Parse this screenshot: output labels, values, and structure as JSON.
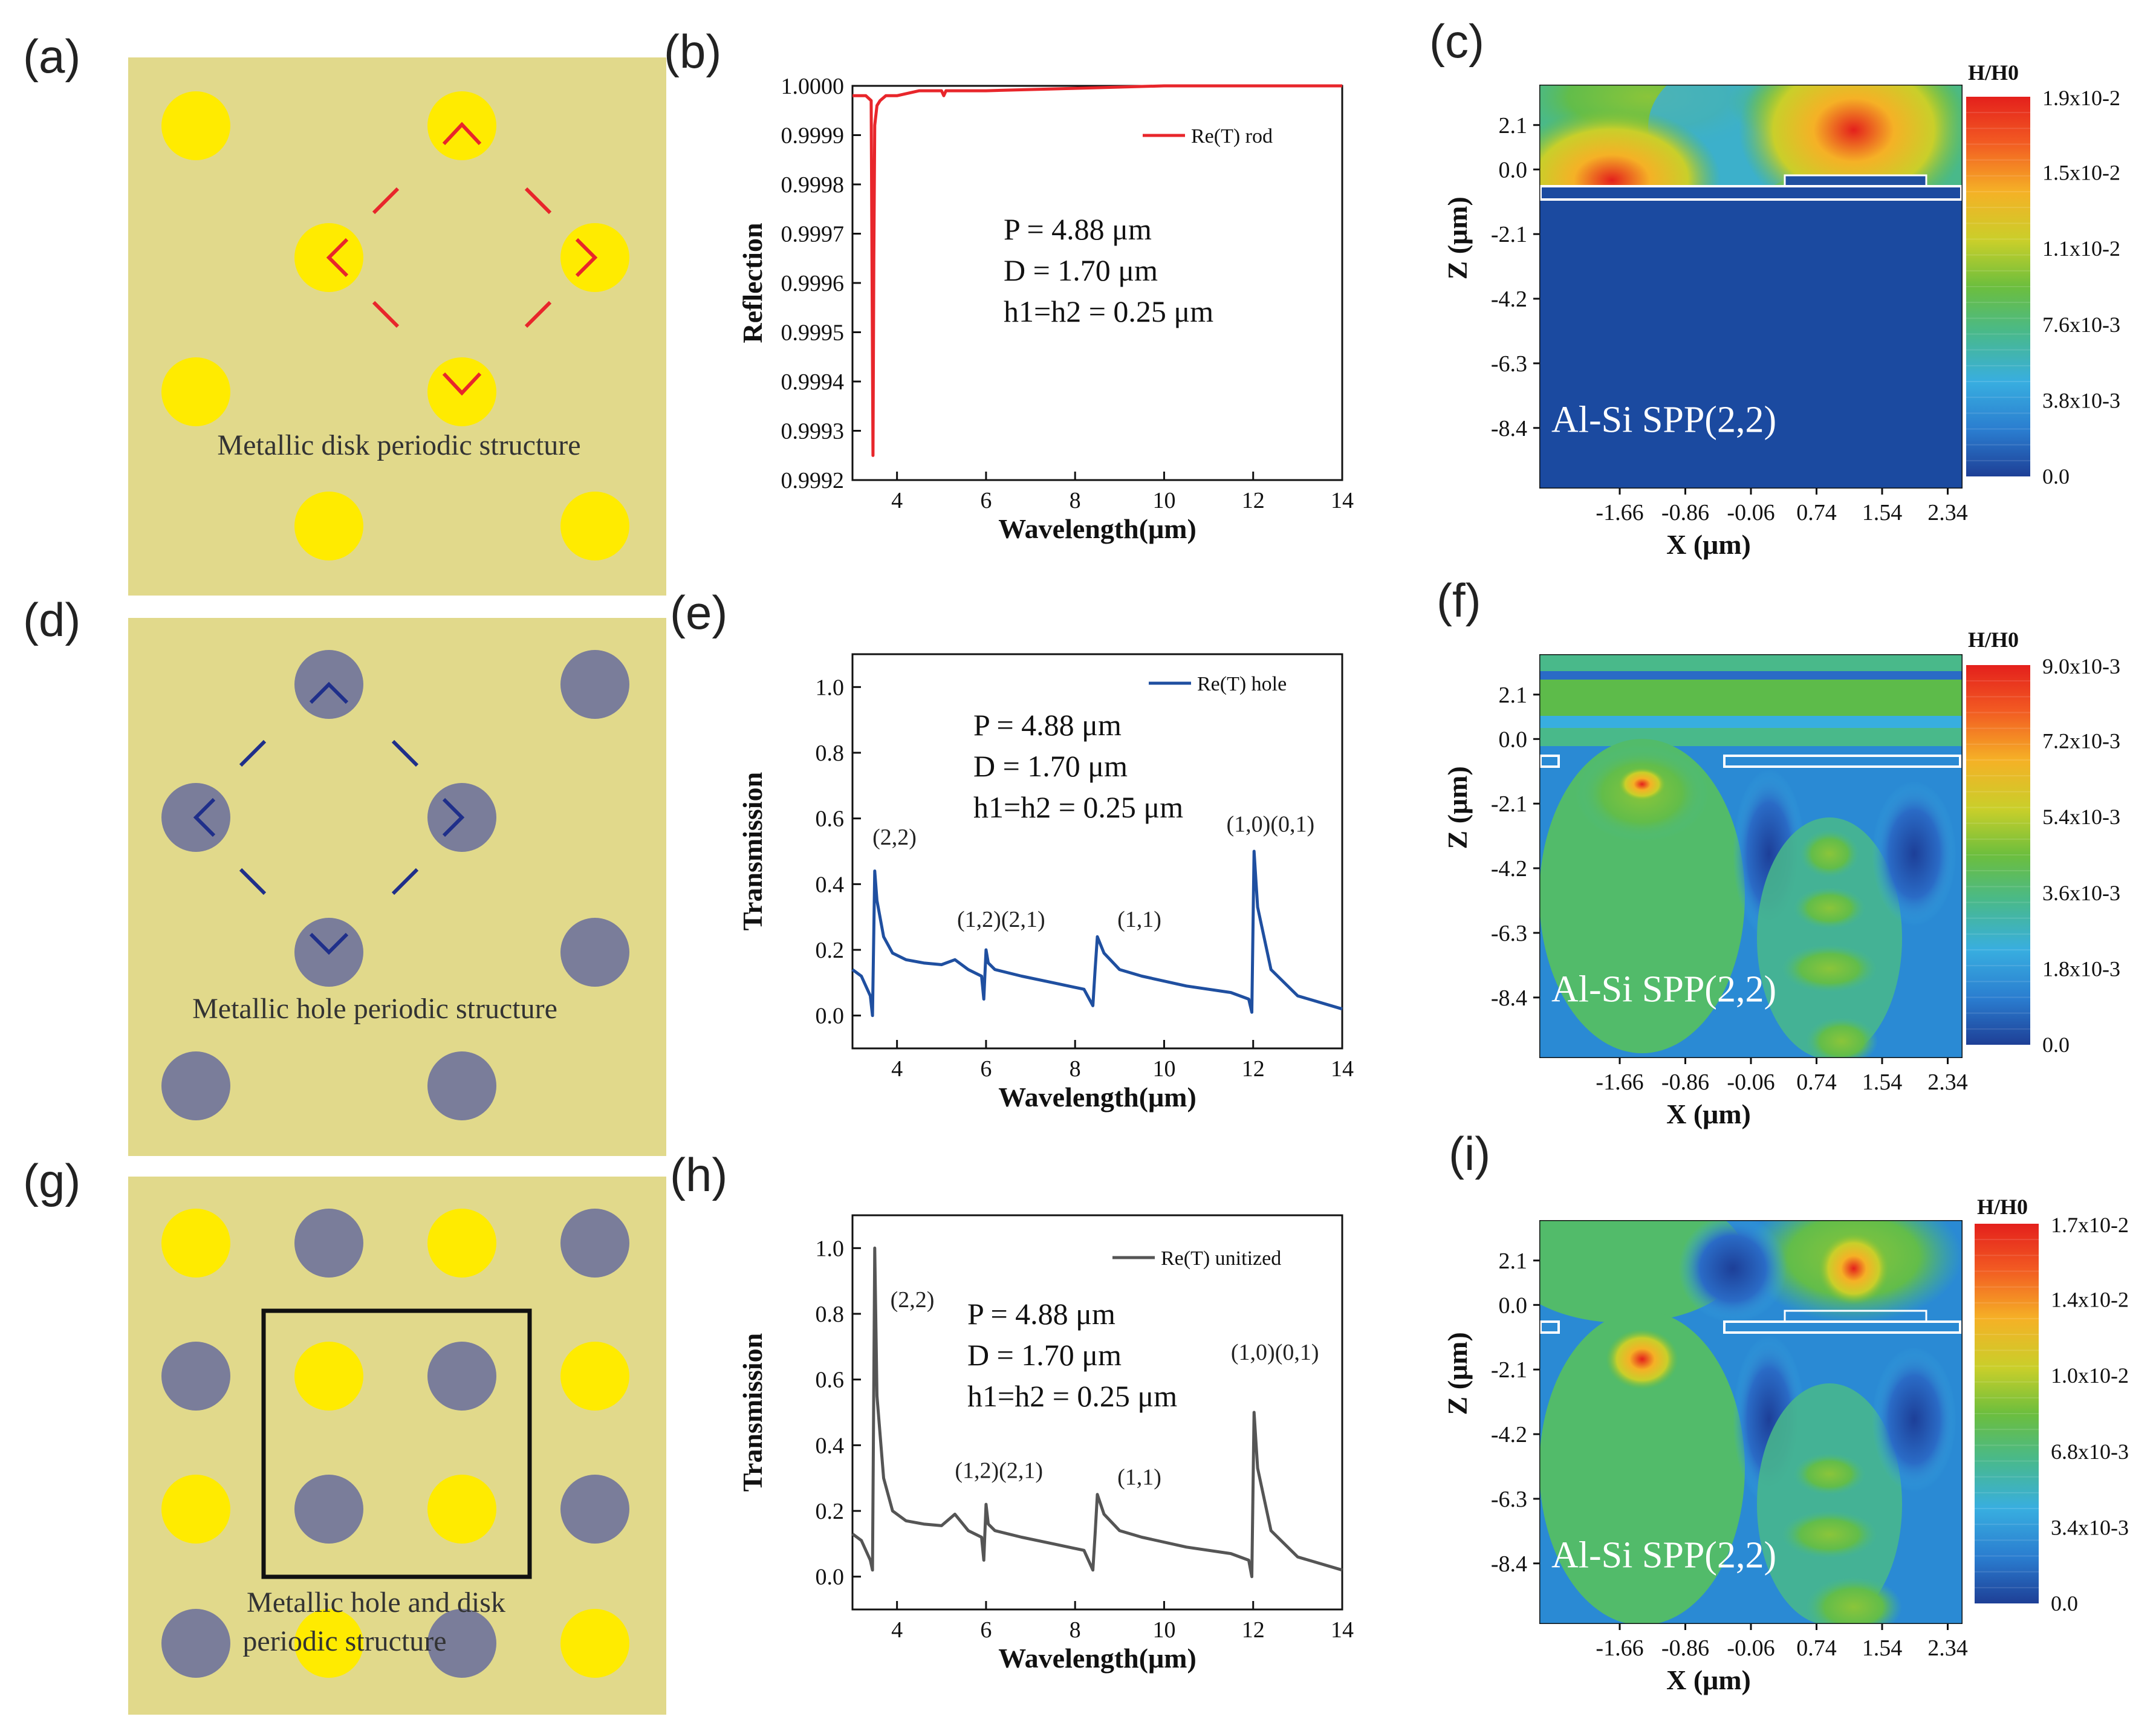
{
  "panel_labels": [
    "(a)",
    "(b)",
    "(c)",
    "(d)",
    "(e)",
    "(f)",
    "(g)",
    "(h)",
    "(i)"
  ],
  "colors": {
    "substrate": "#e1d98b",
    "disk": "#ffeb00",
    "hole": "#7a7d9a",
    "rod_line": "#e8262b",
    "hole_line": "#1f4fa0",
    "unit_line": "#555555",
    "blue_field": "#1848a0"
  },
  "schematics": {
    "a": {
      "caption": "Metallic disk periodic structure",
      "bracket_color": "#e8262b"
    },
    "d": {
      "caption": "Metallic hole  periodic structure",
      "bracket_color": "#1f2f8a"
    },
    "g": {
      "caption_line1": "Metallic hole and disk",
      "caption_line2": "periodic structure"
    }
  },
  "chart_data": [
    {
      "id": "b",
      "type": "line",
      "title": "",
      "xlabel": "Wavelength(μm)",
      "ylabel": "Reflection",
      "xlim": [
        3,
        14
      ],
      "ylim": [
        0.9992,
        1.0
      ],
      "xticks": [
        "4",
        "6",
        "8",
        "10",
        "12",
        "14"
      ],
      "yticks": [
        "0.9992",
        "0.9993",
        "0.9994",
        "0.9995",
        "0.9996",
        "0.9997",
        "0.9998",
        "0.9999",
        "1.0000"
      ],
      "legend": "Re(T) rod",
      "params": [
        "P = 4.88 μm",
        "D = 1.70 μm",
        "h1=h2 = 0.25 μm"
      ],
      "series": [
        {
          "name": "Re(T) rod",
          "x": [
            3.0,
            3.3,
            3.42,
            3.46,
            3.48,
            3.5,
            3.55,
            3.62,
            3.75,
            4.0,
            4.5,
            5.0,
            5.05,
            5.1,
            6.0,
            8.0,
            10.0,
            12.0,
            14.0
          ],
          "y": [
            0.99998,
            0.99998,
            0.99997,
            0.99925,
            0.99965,
            0.99992,
            0.99996,
            0.99997,
            0.99998,
            0.99998,
            0.99999,
            0.99999,
            0.99998,
            0.99999,
            0.99999,
            0.999995,
            1.0,
            1.0,
            1.0
          ]
        }
      ]
    },
    {
      "id": "e",
      "type": "line",
      "title": "",
      "xlabel": "Wavelength(μm)",
      "ylabel": "Transmission",
      "xlim": [
        3,
        14
      ],
      "ylim": [
        -0.1,
        1.1
      ],
      "xticks": [
        "4",
        "6",
        "8",
        "10",
        "12",
        "14"
      ],
      "yticks": [
        "0.0",
        "0.2",
        "0.4",
        "0.6",
        "0.8",
        "1.0"
      ],
      "legend": "Re(T) hole",
      "params": [
        "P = 4.88 μm",
        "D = 1.70 μm",
        "h1=h2 = 0.25 μm"
      ],
      "annotations": [
        {
          "text": "(2,2)",
          "x": 3.45,
          "y": 0.52
        },
        {
          "text": "(1,2)(2,1)",
          "x": 5.35,
          "y": 0.27
        },
        {
          "text": "(1,1)",
          "x": 8.95,
          "y": 0.27
        },
        {
          "text": "(1,0)(0,1)",
          "x": 11.4,
          "y": 0.56
        }
      ],
      "series": [
        {
          "name": "Re(T) hole",
          "x": [
            3.0,
            3.2,
            3.4,
            3.45,
            3.5,
            3.55,
            3.7,
            3.9,
            4.2,
            4.6,
            5.0,
            5.3,
            5.6,
            5.9,
            5.95,
            6.0,
            6.05,
            6.2,
            6.8,
            7.5,
            8.2,
            8.4,
            8.45,
            8.5,
            8.65,
            9.0,
            9.5,
            10.5,
            11.5,
            11.9,
            11.97,
            12.02,
            12.1,
            12.4,
            13.0,
            14.0
          ],
          "y": [
            0.14,
            0.12,
            0.06,
            0.0,
            0.44,
            0.35,
            0.24,
            0.19,
            0.17,
            0.16,
            0.155,
            0.17,
            0.14,
            0.12,
            0.05,
            0.2,
            0.16,
            0.14,
            0.12,
            0.1,
            0.08,
            0.03,
            0.14,
            0.24,
            0.19,
            0.14,
            0.12,
            0.09,
            0.07,
            0.05,
            0.01,
            0.5,
            0.33,
            0.14,
            0.06,
            0.02
          ]
        }
      ]
    },
    {
      "id": "h",
      "type": "line",
      "title": "",
      "xlabel": "Wavelength(μm)",
      "ylabel": "Transmission",
      "xlim": [
        3,
        14
      ],
      "ylim": [
        -0.1,
        1.1
      ],
      "xticks": [
        "4",
        "6",
        "8",
        "10",
        "12",
        "14"
      ],
      "yticks": [
        "0.0",
        "0.2",
        "0.4",
        "0.6",
        "0.8",
        "1.0"
      ],
      "legend": "Re(T) unitized",
      "params": [
        "P = 4.88 μm",
        "D = 1.70 μm",
        "h1=h2 = 0.25 μm"
      ],
      "annotations": [
        {
          "text": "(2,2)",
          "x": 3.85,
          "y": 0.82
        },
        {
          "text": "(1,2)(2,1)",
          "x": 5.3,
          "y": 0.3
        },
        {
          "text": "(1,1)",
          "x": 8.95,
          "y": 0.28
        },
        {
          "text": "(1,0)(0,1)",
          "x": 11.5,
          "y": 0.66
        }
      ],
      "series": [
        {
          "name": "Re(T) unitized",
          "x": [
            3.0,
            3.2,
            3.4,
            3.45,
            3.5,
            3.55,
            3.7,
            3.9,
            4.2,
            4.6,
            5.0,
            5.3,
            5.6,
            5.9,
            5.95,
            6.0,
            6.05,
            6.2,
            6.8,
            7.5,
            8.2,
            8.4,
            8.45,
            8.5,
            8.65,
            9.0,
            9.5,
            10.5,
            11.5,
            11.9,
            11.97,
            12.02,
            12.1,
            12.4,
            13.0,
            14.0
          ],
          "y": [
            0.13,
            0.11,
            0.05,
            0.02,
            1.0,
            0.55,
            0.3,
            0.2,
            0.17,
            0.16,
            0.155,
            0.19,
            0.14,
            0.12,
            0.05,
            0.22,
            0.16,
            0.14,
            0.12,
            0.1,
            0.08,
            0.02,
            0.13,
            0.25,
            0.19,
            0.14,
            0.12,
            0.09,
            0.07,
            0.05,
            0.0,
            0.5,
            0.33,
            0.14,
            0.06,
            0.02
          ]
        }
      ]
    },
    {
      "id": "c",
      "type": "heatmap",
      "xlabel": "X (μm)",
      "ylabel": "Z (μm)",
      "xticks": [
        "-1.66",
        "-0.86",
        "-0.06",
        "0.74",
        "1.54",
        "2.34"
      ],
      "yticks": [
        "2.1",
        "0.0",
        "-2.1",
        "-4.2",
        "-6.3",
        "-8.4"
      ],
      "colorbar_title": "H/H0",
      "colorbar_ticks": [
        "1.9x10-2",
        "1.5x10-2",
        "1.1x10-2",
        "7.6x10-3",
        "3.8x10-3",
        "0.0"
      ],
      "mode_label": "Al-Si SPP(2,2)"
    },
    {
      "id": "f",
      "type": "heatmap",
      "xlabel": "X (μm)",
      "ylabel": "Z (μm)",
      "xticks": [
        "-1.66",
        "-0.86",
        "-0.06",
        "0.74",
        "1.54",
        "2.34"
      ],
      "yticks": [
        "2.1",
        "0.0",
        "-2.1",
        "-4.2",
        "-6.3",
        "-8.4"
      ],
      "colorbar_title": "H/H0",
      "colorbar_ticks": [
        "9.0x10-3",
        "7.2x10-3",
        "5.4x10-3",
        "3.6x10-3",
        "1.8x10-3",
        "0.0"
      ],
      "mode_label": "Al-Si SPP(2,2)"
    },
    {
      "id": "i",
      "type": "heatmap",
      "xlabel": "X (μm)",
      "ylabel": "Z (μm)",
      "xticks": [
        "-1.66",
        "-0.86",
        "-0.06",
        "0.74",
        "1.54",
        "2.34"
      ],
      "yticks": [
        "2.1",
        "0.0",
        "-2.1",
        "-4.2",
        "-6.3",
        "-8.4"
      ],
      "colorbar_title": "H/H0",
      "colorbar_ticks": [
        "1.7x10-2",
        "1.4x10-2",
        "1.0x10-2",
        "6.8x10-3",
        "3.4x10-3",
        "0.0"
      ],
      "mode_label": "Al-Si SPP(2,2)"
    }
  ]
}
